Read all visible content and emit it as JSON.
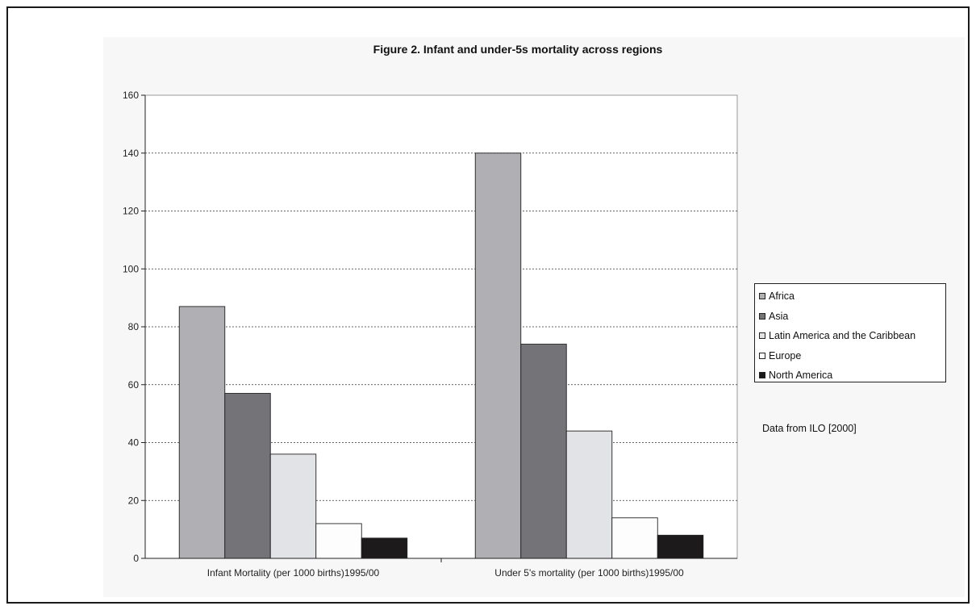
{
  "chart_data": {
    "type": "bar",
    "title": "Figure 2. Infant and under-5s mortality across regions",
    "categories": [
      "Infant Mortality (per 1000 births)1995/00",
      "Under 5's mortality (per 1000 births)1995/00"
    ],
    "series": [
      {
        "name": "Africa",
        "color": "#b0b0b4",
        "values": [
          87,
          140
        ]
      },
      {
        "name": "Asia",
        "color": "#737378",
        "values": [
          57,
          74
        ]
      },
      {
        "name": "Latin America and the Caribbean",
        "color": "#e2e3e6",
        "values": [
          36,
          44
        ]
      },
      {
        "name": "Europe",
        "color": "#fdfdfd",
        "values": [
          12,
          14
        ]
      },
      {
        "name": "North America",
        "color": "#1c1a1b",
        "values": [
          7,
          8
        ]
      }
    ],
    "ylim": [
      0,
      160
    ],
    "yticks": [
      0,
      20,
      40,
      60,
      80,
      100,
      120,
      140,
      160
    ],
    "grid": "horizontal dotted",
    "legend_position": "right"
  },
  "source_note": "Data from ILO [2000]"
}
